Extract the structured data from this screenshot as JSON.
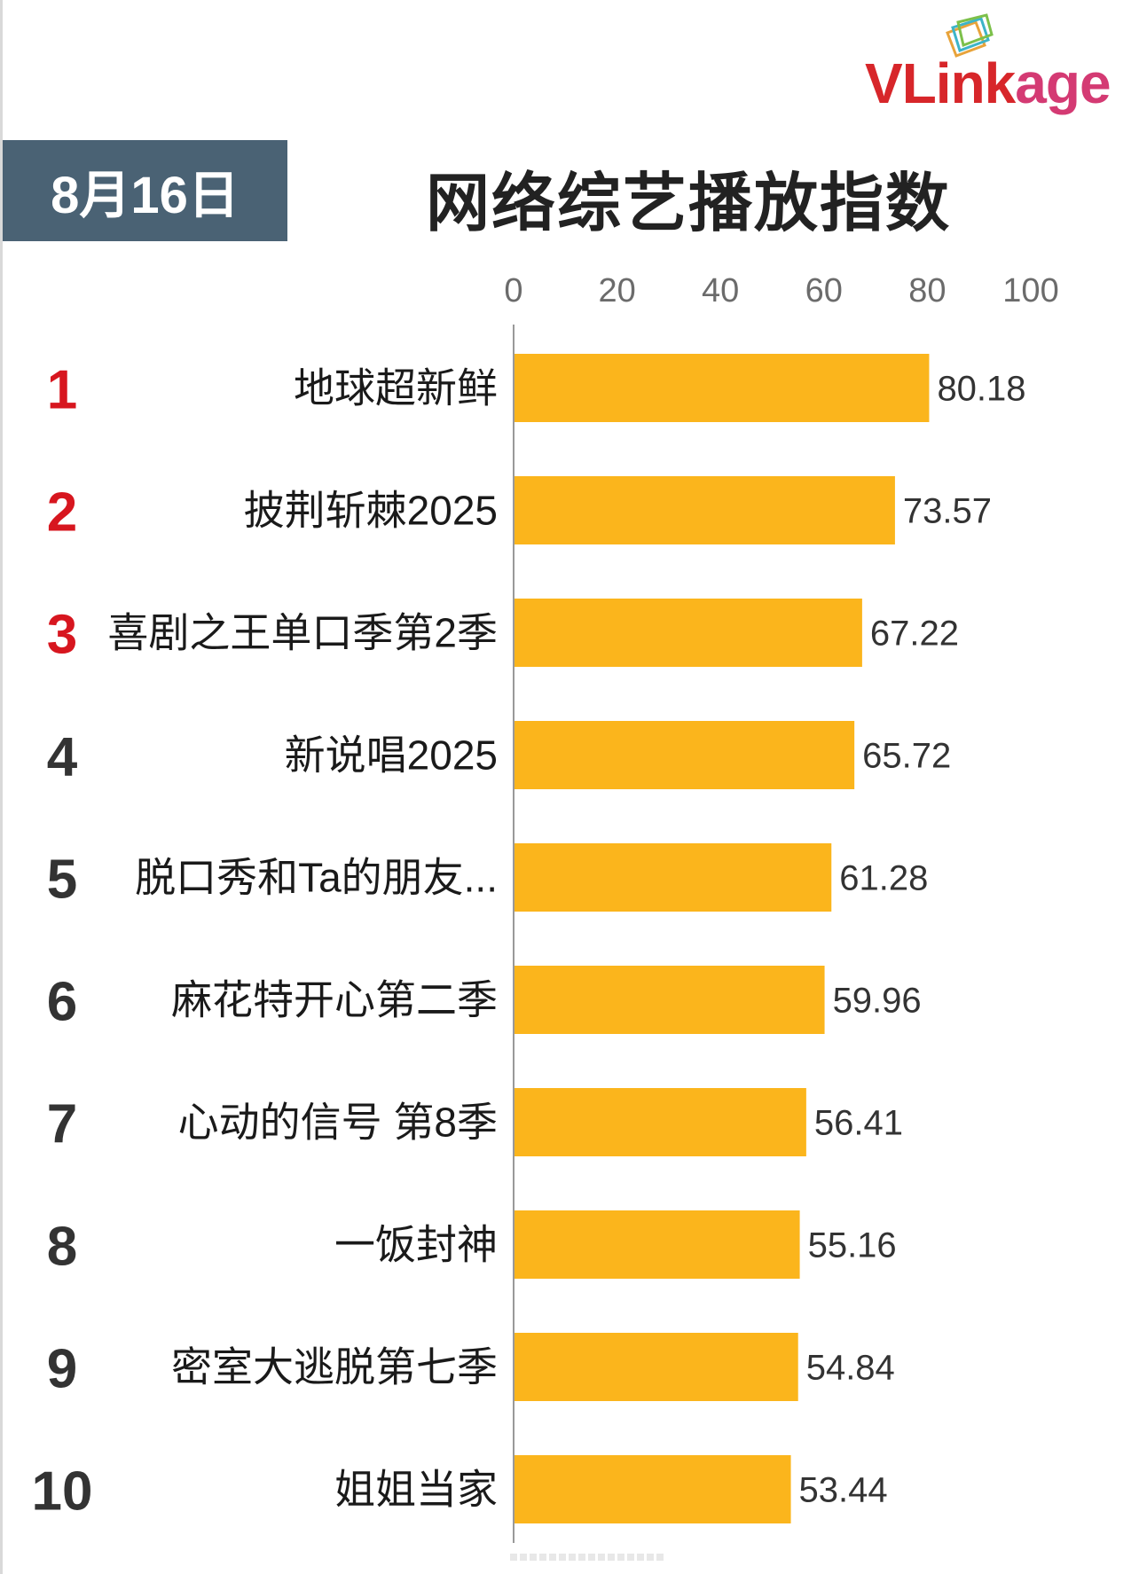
{
  "header": {
    "date": "8月16日",
    "title": "网络综艺播放指数",
    "logo": {
      "part1": "VL",
      "part2": "ink",
      "part3": "age"
    }
  },
  "colors": {
    "bar": "#fbb51c",
    "top_rank": "#d7161f",
    "rank": "#333333",
    "banner": "#4a6274",
    "axis": "#999999"
  },
  "chart_data": {
    "type": "bar",
    "orientation": "horizontal",
    "title": "网络综艺播放指数",
    "xlim": [
      0,
      100
    ],
    "xticks": [
      "0",
      "20",
      "40",
      "60",
      "80",
      "100"
    ],
    "ranks": [
      "1",
      "2",
      "3",
      "4",
      "5",
      "6",
      "7",
      "8",
      "9",
      "10"
    ],
    "categories": [
      "地球超新鲜",
      "披荆斩棘2025",
      "喜剧之王单口季第2季",
      "新说唱2025",
      "脱口秀和Ta的朋友...",
      "麻花特开心第二季",
      "心动的信号 第8季",
      "一饭封神",
      "密室大逃脱第七季",
      "姐姐当家"
    ],
    "values": [
      80.18,
      73.57,
      67.22,
      65.72,
      61.28,
      59.96,
      56.41,
      55.16,
      54.84,
      53.44
    ],
    "value_labels": [
      "80.18",
      "73.57",
      "67.22",
      "65.72",
      "61.28",
      "59.96",
      "56.41",
      "55.16",
      "54.84",
      "53.44"
    ]
  }
}
